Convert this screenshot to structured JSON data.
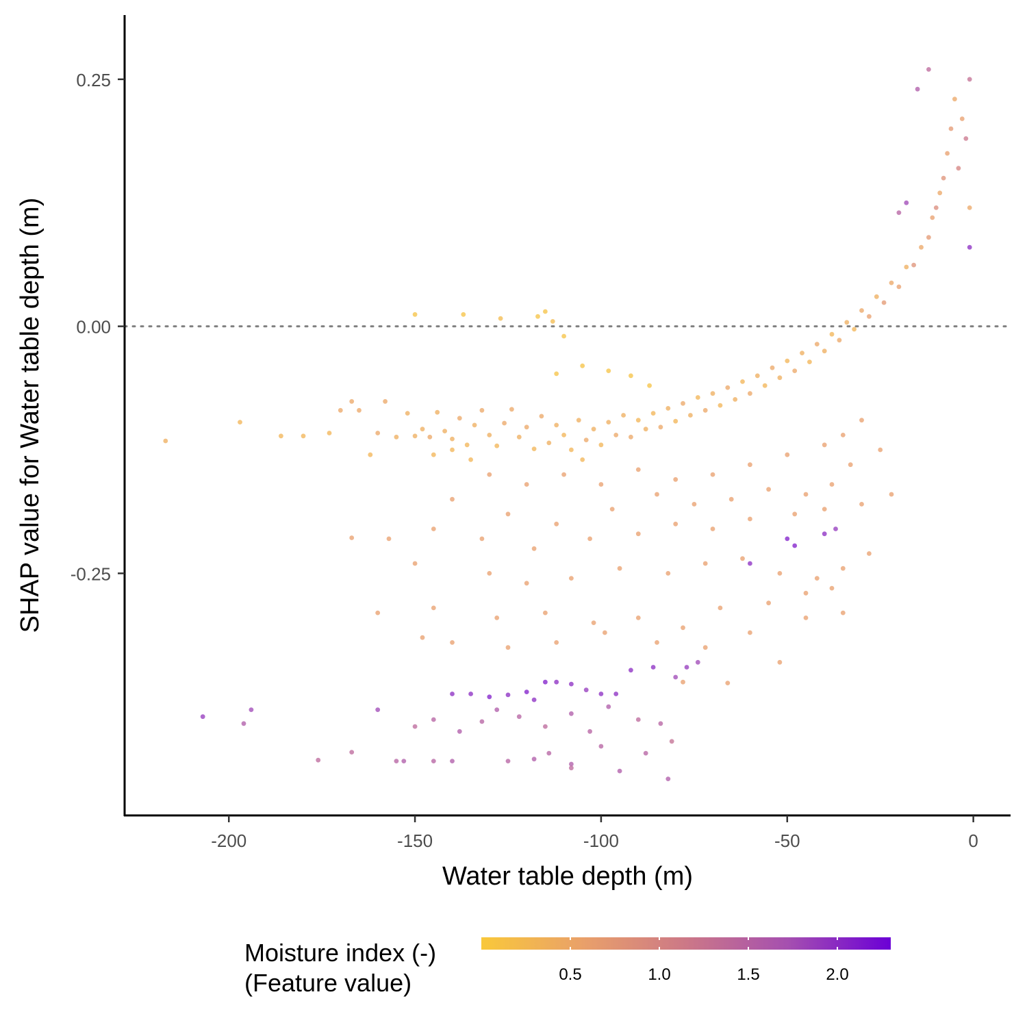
{
  "chart_data": {
    "type": "scatter",
    "xlabel": "Water table depth (m)",
    "ylabel": "SHAP value for Water table depth (m)",
    "xlim": [
      -228,
      10
    ],
    "ylim": [
      -0.495,
      0.315
    ],
    "x_ticks": [
      -200,
      -150,
      -100,
      -50,
      0
    ],
    "x_tick_labels": [
      "-200",
      "-150",
      "-100",
      "-50",
      "0"
    ],
    "y_ticks": [
      0.25,
      0.0,
      -0.25
    ],
    "y_tick_labels": [
      "0.25",
      "0.00",
      "-0.25"
    ],
    "reference_line": {
      "y": 0.0,
      "style": "dotted",
      "color": "#808080"
    },
    "grid": false,
    "color_legend": {
      "title_line1": "Moisture index (-)",
      "title_line2": "(Feature value)",
      "range": [
        0.0,
        2.3
      ],
      "ticks": [
        0.5,
        1.0,
        1.5,
        2.0
      ],
      "tick_labels": [
        "0.5",
        "1.0",
        "1.5",
        "2.0"
      ],
      "colors": [
        "#f9c83a",
        "#e9a06a",
        "#cc7887",
        "#a54fb0",
        "#6b00d6"
      ],
      "placement": "bottom"
    },
    "points": [
      [
        -217,
        -0.116,
        0.4
      ],
      [
        -197,
        -0.097,
        0.3
      ],
      [
        -186,
        -0.111,
        0.3
      ],
      [
        -180,
        -0.111,
        0.3
      ],
      [
        -173,
        -0.108,
        0.3
      ],
      [
        -170,
        -0.085,
        0.5
      ],
      [
        -167,
        -0.076,
        0.5
      ],
      [
        -165,
        -0.085,
        0.5
      ],
      [
        -162,
        -0.13,
        0.3
      ],
      [
        -160,
        -0.108,
        0.5
      ],
      [
        -158,
        -0.076,
        0.5
      ],
      [
        -155,
        -0.112,
        0.4
      ],
      [
        -152,
        -0.088,
        0.4
      ],
      [
        -150,
        -0.111,
        0.4
      ],
      [
        -148,
        -0.104,
        0.4
      ],
      [
        -146,
        -0.112,
        0.5
      ],
      [
        -144,
        -0.087,
        0.4
      ],
      [
        -142,
        -0.106,
        0.4
      ],
      [
        -140,
        -0.114,
        0.4
      ],
      [
        -138,
        -0.093,
        0.5
      ],
      [
        -136,
        -0.12,
        0.3
      ],
      [
        -134,
        -0.1,
        0.4
      ],
      [
        -132,
        -0.085,
        0.5
      ],
      [
        -130,
        -0.11,
        0.4
      ],
      [
        -128,
        -0.121,
        0.3
      ],
      [
        -126,
        -0.098,
        0.5
      ],
      [
        -124,
        -0.084,
        0.5
      ],
      [
        -122,
        -0.112,
        0.4
      ],
      [
        -120,
        -0.102,
        0.5
      ],
      [
        -118,
        -0.124,
        0.3
      ],
      [
        -116,
        -0.091,
        0.5
      ],
      [
        -114,
        -0.118,
        0.4
      ],
      [
        -112,
        -0.1,
        0.4
      ],
      [
        -110,
        -0.11,
        0.3
      ],
      [
        -108,
        -0.125,
        0.3
      ],
      [
        -106,
        -0.095,
        0.4
      ],
      [
        -104,
        -0.115,
        0.5
      ],
      [
        -102,
        -0.104,
        0.4
      ],
      [
        -100,
        -0.12,
        0.3
      ],
      [
        -98,
        -0.097,
        0.4
      ],
      [
        -96,
        -0.11,
        0.5
      ],
      [
        -94,
        -0.09,
        0.4
      ],
      [
        -92,
        -0.112,
        0.5
      ],
      [
        -90,
        -0.095,
        0.3
      ],
      [
        -88,
        -0.104,
        0.4
      ],
      [
        -86,
        -0.088,
        0.3
      ],
      [
        -84,
        -0.102,
        0.5
      ],
      [
        -82,
        -0.083,
        0.4
      ],
      [
        -80,
        -0.096,
        0.3
      ],
      [
        -78,
        -0.078,
        0.5
      ],
      [
        -76,
        -0.09,
        0.4
      ],
      [
        -74,
        -0.072,
        0.3
      ],
      [
        -72,
        -0.085,
        0.5
      ],
      [
        -70,
        -0.068,
        0.4
      ],
      [
        -68,
        -0.08,
        0.3
      ],
      [
        -66,
        -0.062,
        0.5
      ],
      [
        -64,
        -0.074,
        0.4
      ],
      [
        -62,
        -0.056,
        0.3
      ],
      [
        -60,
        -0.068,
        0.5
      ],
      [
        -58,
        -0.05,
        0.4
      ],
      [
        -56,
        -0.06,
        0.3
      ],
      [
        -54,
        -0.042,
        0.5
      ],
      [
        -52,
        -0.052,
        0.4
      ],
      [
        -50,
        -0.035,
        0.3
      ],
      [
        -48,
        -0.045,
        0.5
      ],
      [
        -46,
        -0.027,
        0.4
      ],
      [
        -44,
        -0.036,
        0.3
      ],
      [
        -42,
        -0.018,
        0.5
      ],
      [
        -40,
        -0.025,
        0.4
      ],
      [
        -38,
        -0.008,
        0.3
      ],
      [
        -36,
        -0.014,
        0.5
      ],
      [
        -34,
        0.004,
        0.4
      ],
      [
        -32,
        -0.003,
        0.3
      ],
      [
        -30,
        0.016,
        0.5
      ],
      [
        -28,
        0.01,
        0.6
      ],
      [
        -26,
        0.03,
        0.4
      ],
      [
        -24,
        0.024,
        0.7
      ],
      [
        -22,
        0.044,
        0.5
      ],
      [
        -20,
        0.04,
        0.6
      ],
      [
        -18,
        0.06,
        0.4
      ],
      [
        -16,
        0.062,
        0.8
      ],
      [
        -14,
        0.08,
        0.5
      ],
      [
        -12,
        0.09,
        0.7
      ],
      [
        -11,
        0.11,
        0.6
      ],
      [
        -10,
        0.12,
        0.9
      ],
      [
        -9,
        0.135,
        0.5
      ],
      [
        -8,
        0.15,
        0.8
      ],
      [
        -7,
        0.175,
        0.6
      ],
      [
        -6,
        0.2,
        0.7
      ],
      [
        -5,
        0.23,
        0.5
      ],
      [
        -4,
        0.16,
        1.0
      ],
      [
        -3,
        0.21,
        0.6
      ],
      [
        -2,
        0.19,
        1.2
      ],
      [
        -1,
        0.12,
        0.5
      ],
      [
        -1,
        0.25,
        1.3
      ],
      [
        -1,
        0.08,
        2.0
      ],
      [
        -12,
        0.26,
        1.4
      ],
      [
        -15,
        0.24,
        1.6
      ],
      [
        -18,
        0.125,
        1.8
      ],
      [
        -20,
        0.115,
        1.5
      ],
      [
        -115,
        0.015,
        0.1
      ],
      [
        -117,
        0.01,
        0.1
      ],
      [
        -113,
        0.005,
        0.2
      ],
      [
        -110,
        -0.01,
        0.1
      ],
      [
        -150,
        0.012,
        0.1
      ],
      [
        -137,
        0.012,
        0.1
      ],
      [
        -127,
        0.008,
        0.2
      ],
      [
        -105,
        -0.04,
        0.1
      ],
      [
        -98,
        -0.045,
        0.1
      ],
      [
        -92,
        -0.05,
        0.1
      ],
      [
        -87,
        -0.06,
        0.1
      ],
      [
        -112,
        -0.048,
        0.1
      ],
      [
        -145,
        -0.13,
        0.3
      ],
      [
        -140,
        -0.125,
        0.3
      ],
      [
        -135,
        -0.135,
        0.3
      ],
      [
        -105,
        -0.135,
        0.3
      ],
      [
        -130,
        -0.15,
        0.6
      ],
      [
        -120,
        -0.16,
        0.6
      ],
      [
        -110,
        -0.15,
        0.6
      ],
      [
        -100,
        -0.16,
        0.6
      ],
      [
        -90,
        -0.145,
        0.6
      ],
      [
        -80,
        -0.155,
        0.6
      ],
      [
        -70,
        -0.15,
        0.6
      ],
      [
        -60,
        -0.14,
        0.6
      ],
      [
        -50,
        -0.13,
        0.6
      ],
      [
        -40,
        -0.12,
        0.6
      ],
      [
        -35,
        -0.11,
        0.6
      ],
      [
        -30,
        -0.095,
        0.6
      ],
      [
        -140,
        -0.175,
        0.6
      ],
      [
        -125,
        -0.19,
        0.6
      ],
      [
        -112,
        -0.2,
        0.6
      ],
      [
        -97,
        -0.185,
        0.6
      ],
      [
        -85,
        -0.17,
        0.6
      ],
      [
        -75,
        -0.18,
        0.6
      ],
      [
        -65,
        -0.175,
        0.6
      ],
      [
        -55,
        -0.165,
        0.6
      ],
      [
        -45,
        -0.17,
        0.6
      ],
      [
        -38,
        -0.16,
        0.6
      ],
      [
        -33,
        -0.14,
        0.6
      ],
      [
        -25,
        -0.125,
        0.6
      ],
      [
        -145,
        -0.205,
        0.6
      ],
      [
        -132,
        -0.215,
        0.6
      ],
      [
        -118,
        -0.225,
        0.6
      ],
      [
        -103,
        -0.215,
        0.6
      ],
      [
        -90,
        -0.21,
        0.6
      ],
      [
        -80,
        -0.2,
        0.6
      ],
      [
        -70,
        -0.205,
        0.6
      ],
      [
        -60,
        -0.195,
        0.6
      ],
      [
        -48,
        -0.19,
        0.6
      ],
      [
        -40,
        -0.185,
        0.6
      ],
      [
        -30,
        -0.18,
        0.6
      ],
      [
        -22,
        -0.17,
        0.6
      ],
      [
        -157,
        -0.215,
        0.6
      ],
      [
        -167,
        -0.214,
        0.6
      ],
      [
        -150,
        -0.24,
        0.6
      ],
      [
        -130,
        -0.25,
        0.6
      ],
      [
        -120,
        -0.26,
        0.6
      ],
      [
        -108,
        -0.255,
        0.6
      ],
      [
        -95,
        -0.245,
        0.6
      ],
      [
        -82,
        -0.25,
        0.6
      ],
      [
        -72,
        -0.24,
        0.6
      ],
      [
        -62,
        -0.235,
        0.6
      ],
      [
        -52,
        -0.25,
        0.6
      ],
      [
        -42,
        -0.255,
        0.6
      ],
      [
        -35,
        -0.245,
        0.6
      ],
      [
        -28,
        -0.23,
        0.6
      ],
      [
        -160,
        -0.29,
        0.6
      ],
      [
        -145,
        -0.285,
        0.6
      ],
      [
        -128,
        -0.295,
        0.6
      ],
      [
        -115,
        -0.29,
        0.6
      ],
      [
        -102,
        -0.3,
        0.6
      ],
      [
        -90,
        -0.295,
        0.6
      ],
      [
        -78,
        -0.305,
        0.6
      ],
      [
        -68,
        -0.285,
        0.6
      ],
      [
        -55,
        -0.28,
        0.6
      ],
      [
        -45,
        -0.27,
        0.6
      ],
      [
        -38,
        -0.265,
        0.6
      ],
      [
        -148,
        -0.315,
        0.6
      ],
      [
        -140,
        -0.32,
        0.6
      ],
      [
        -125,
        -0.325,
        0.6
      ],
      [
        -112,
        -0.32,
        0.6
      ],
      [
        -99,
        -0.31,
        0.6
      ],
      [
        -85,
        -0.32,
        0.6
      ],
      [
        -72,
        -0.325,
        0.6
      ],
      [
        -60,
        -0.31,
        0.6
      ],
      [
        -45,
        -0.295,
        0.6
      ],
      [
        -35,
        -0.29,
        0.6
      ],
      [
        -78,
        -0.36,
        0.6
      ],
      [
        -66,
        -0.361,
        0.6
      ],
      [
        -52,
        -0.34,
        0.6
      ],
      [
        -60,
        -0.24,
        2.0
      ],
      [
        -50,
        -0.215,
        2.1
      ],
      [
        -40,
        -0.21,
        2.0
      ],
      [
        -37,
        -0.205,
        1.9
      ],
      [
        -48,
        -0.222,
        2.1
      ],
      [
        -86,
        -0.345,
        2.0
      ],
      [
        -92,
        -0.348,
        2.0
      ],
      [
        -77,
        -0.345,
        1.9
      ],
      [
        -74,
        -0.34,
        1.8
      ],
      [
        -80,
        -0.355,
        1.8
      ],
      [
        -207,
        -0.395,
        1.9
      ],
      [
        -194,
        -0.388,
        1.8
      ],
      [
        -196,
        -0.402,
        1.6
      ],
      [
        -160,
        -0.388,
        1.8
      ],
      [
        -140,
        -0.372,
        2.0
      ],
      [
        -135,
        -0.372,
        2.0
      ],
      [
        -130,
        -0.375,
        2.1
      ],
      [
        -125,
        -0.373,
        2.0
      ],
      [
        -115,
        -0.36,
        2.1
      ],
      [
        -112,
        -0.36,
        2.0
      ],
      [
        -108,
        -0.362,
        2.0
      ],
      [
        -104,
        -0.368,
        1.9
      ],
      [
        -100,
        -0.372,
        2.0
      ],
      [
        -96,
        -0.372,
        2.0
      ],
      [
        -120,
        -0.37,
        2.1
      ],
      [
        -118,
        -0.378,
        2.0
      ],
      [
        -145,
        -0.398,
        1.5
      ],
      [
        -150,
        -0.405,
        1.4
      ],
      [
        -138,
        -0.41,
        1.6
      ],
      [
        -132,
        -0.4,
        1.5
      ],
      [
        -128,
        -0.388,
        1.6
      ],
      [
        -122,
        -0.395,
        1.5
      ],
      [
        -115,
        -0.405,
        1.4
      ],
      [
        -108,
        -0.392,
        1.6
      ],
      [
        -103,
        -0.41,
        1.5
      ],
      [
        -98,
        -0.385,
        1.6
      ],
      [
        -90,
        -0.398,
        1.4
      ],
      [
        -84,
        -0.402,
        1.5
      ],
      [
        -155,
        -0.44,
        1.5
      ],
      [
        -153,
        -0.44,
        1.6
      ],
      [
        -145,
        -0.44,
        1.5
      ],
      [
        -140,
        -0.44,
        1.6
      ],
      [
        -125,
        -0.44,
        1.5
      ],
      [
        -118,
        -0.438,
        1.6
      ],
      [
        -114,
        -0.432,
        1.5
      ],
      [
        -108,
        -0.443,
        1.6
      ],
      [
        -100,
        -0.425,
        1.5
      ],
      [
        -95,
        -0.45,
        1.6
      ],
      [
        -88,
        -0.432,
        1.5
      ],
      [
        -82,
        -0.458,
        1.6
      ],
      [
        -176,
        -0.439,
        1.4
      ],
      [
        -167,
        -0.431,
        1.4
      ],
      [
        -81,
        -0.42,
        1.3
      ],
      [
        -108,
        -0.447,
        1.4
      ]
    ]
  }
}
